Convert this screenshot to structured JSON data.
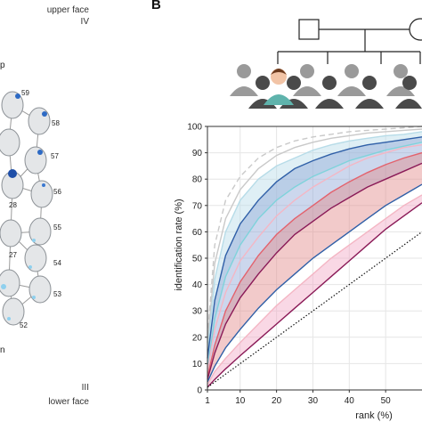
{
  "panel_a": {
    "top_label": "upper face",
    "top_numeral": "IV",
    "bottom_numeral": "III",
    "bottom_label": "lower face",
    "left_cut_top": "p",
    "left_cut_bottom": "n",
    "node_labels": [
      "59",
      "58",
      "57",
      "56",
      "28",
      "55",
      "27",
      "54",
      "53",
      "52"
    ]
  },
  "panel_b": {
    "letter": "B"
  },
  "chart_data": {
    "type": "line",
    "title": "",
    "xlabel": "rank (%)",
    "ylabel": "identification rate (%)",
    "xlim": [
      1,
      60
    ],
    "ylim": [
      0,
      100
    ],
    "x_ticks": [
      "1",
      "10",
      "20",
      "30",
      "40",
      "50"
    ],
    "y_ticks": [
      "0",
      "10",
      "20",
      "30",
      "40",
      "50",
      "60",
      "70",
      "80",
      "90",
      "100"
    ],
    "grid": true,
    "x": [
      1,
      3,
      6,
      10,
      15,
      20,
      25,
      30,
      35,
      40,
      45,
      50,
      55,
      60
    ],
    "series": [
      {
        "color": "#c9c9c9",
        "dash": "dashed",
        "values": [
          20,
          55,
          72,
          81,
          88,
          92,
          94.5,
          96,
          97,
          98,
          98.5,
          99,
          99.5,
          100
        ]
      },
      {
        "color": "#c9c9c9",
        "dash": "solid",
        "values": [
          18,
          48,
          65,
          76,
          84,
          89,
          92,
          94,
          95.5,
          96.5,
          97.5,
          98,
          98.5,
          99
        ]
      },
      {
        "color": "#b7dce8",
        "dash": "solid",
        "values": [
          15,
          42,
          60,
          72,
          80,
          85,
          88,
          91,
          93,
          94.5,
          95.5,
          96.5,
          97,
          98
        ]
      },
      {
        "color": "#2f5fa7",
        "dash": "solid",
        "values": [
          12,
          34,
          51,
          63,
          72,
          79,
          84,
          87,
          89.5,
          91.5,
          93,
          94,
          95,
          96
        ]
      },
      {
        "color": "#7fd3db",
        "dash": "solid",
        "values": [
          8,
          27,
          43,
          55,
          65,
          72,
          77,
          81,
          84,
          87,
          89,
          91,
          92.5,
          94
        ]
      },
      {
        "color": "#f4b6c4",
        "dash": "solid",
        "values": [
          7,
          23,
          37,
          49,
          58,
          66,
          72,
          77,
          81,
          85,
          88,
          90,
          92,
          93
        ]
      },
      {
        "color": "#e3626d",
        "dash": "solid",
        "values": [
          5,
          17,
          30,
          41,
          51,
          59,
          65,
          70,
          75,
          79,
          82.5,
          85.5,
          88,
          90
        ]
      },
      {
        "color": "#8a1a57",
        "dash": "solid",
        "values": [
          4,
          14,
          25,
          35,
          44,
          52,
          59,
          64,
          69,
          73,
          77,
          80,
          83,
          86
        ]
      },
      {
        "color": "#2f5fa7",
        "dash": "solid",
        "values": [
          3,
          9,
          16,
          23,
          31,
          38,
          44,
          50,
          55,
          60,
          65,
          70,
          74,
          78
        ]
      },
      {
        "color": "#f4b6c4",
        "dash": "solid",
        "values": [
          2,
          7,
          12,
          18,
          25,
          32,
          38,
          44,
          50,
          55,
          60,
          65,
          70,
          74
        ]
      },
      {
        "color": "#8a1a57",
        "dash": "solid",
        "values": [
          1,
          4,
          8,
          13,
          19,
          25,
          31,
          37,
          43,
          49,
          55,
          61,
          66,
          71
        ]
      },
      {
        "color": "#111111",
        "dash": "dotted",
        "values": [
          1,
          3,
          6,
          10,
          15,
          20,
          25,
          30,
          35,
          40,
          45,
          50,
          55,
          60
        ]
      }
    ],
    "bands": [
      {
        "color": "#b7dce8",
        "upper": [
          15,
          42,
          60,
          72,
          80,
          85,
          88,
          91,
          93,
          94.5,
          95.5,
          96.5,
          97,
          98
        ],
        "lower": [
          8,
          27,
          43,
          55,
          65,
          72,
          77,
          81,
          84,
          87,
          89,
          91,
          92.5,
          94
        ]
      },
      {
        "color": "#8fa7d8",
        "upper": [
          12,
          34,
          51,
          63,
          72,
          79,
          84,
          87,
          89.5,
          91.5,
          93,
          94,
          95,
          96
        ],
        "lower": [
          4,
          14,
          25,
          35,
          44,
          52,
          59,
          64,
          69,
          73,
          77,
          80,
          83,
          86
        ]
      },
      {
        "color": "#e38a8a",
        "upper": [
          5,
          17,
          30,
          41,
          51,
          59,
          65,
          70,
          75,
          79,
          82.5,
          85.5,
          88,
          90
        ],
        "lower": [
          3,
          9,
          16,
          23,
          31,
          38,
          44,
          50,
          55,
          60,
          65,
          70,
          74,
          78
        ]
      },
      {
        "color": "#f2a8c6",
        "upper": [
          2,
          7,
          12,
          18,
          25,
          32,
          38,
          44,
          50,
          55,
          60,
          65,
          70,
          74
        ],
        "lower": [
          1,
          4,
          8,
          13,
          19,
          25,
          31,
          37,
          43,
          49,
          55,
          61,
          66,
          71
        ]
      }
    ]
  }
}
